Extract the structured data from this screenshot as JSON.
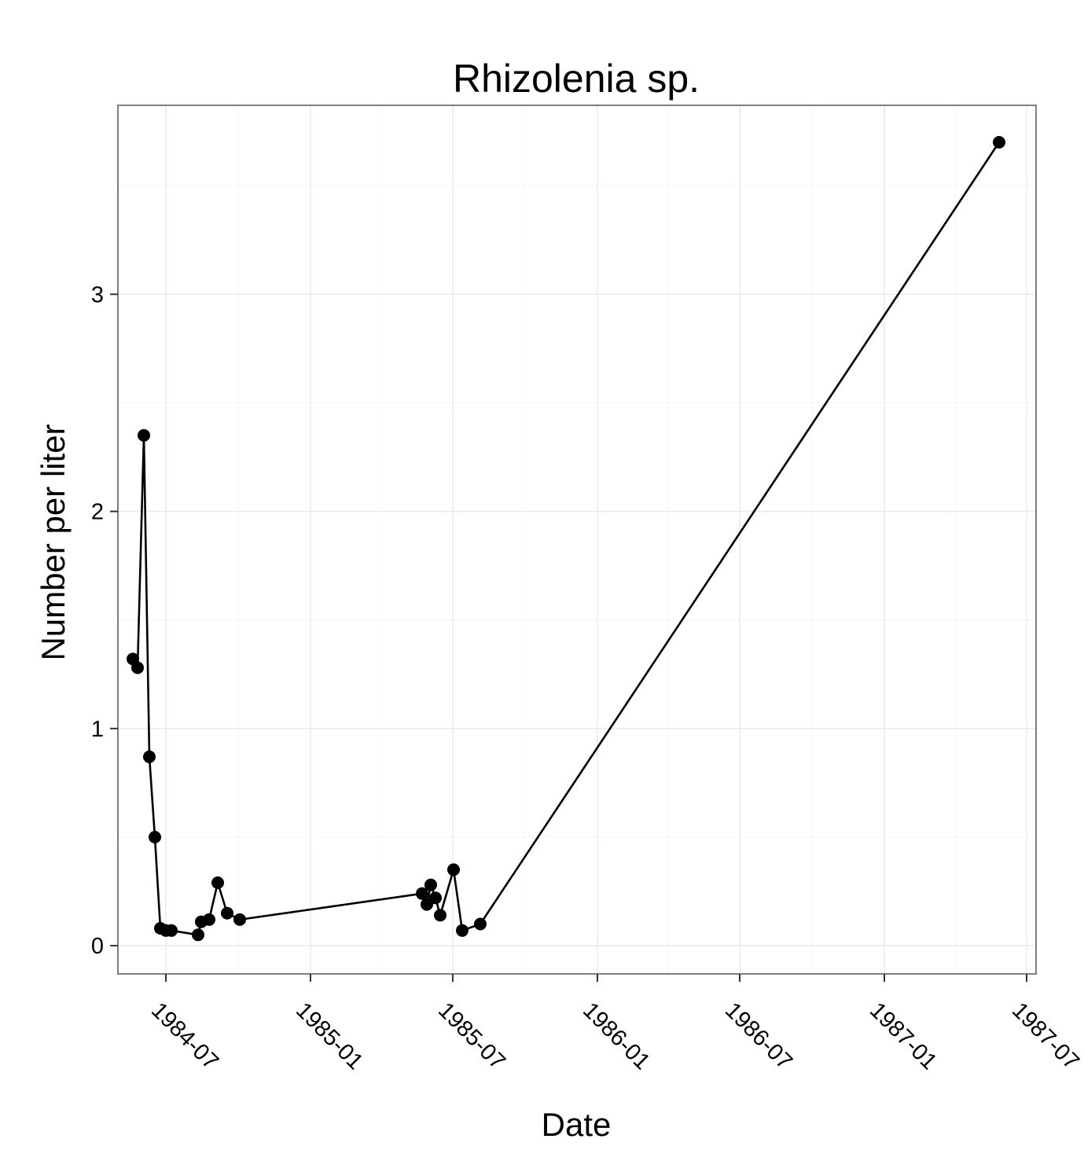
{
  "chart_data": {
    "type": "line",
    "title": "Rhizolenia sp.",
    "xlabel": "Date",
    "ylabel": "Number per liter",
    "x_tick_labels": [
      "1984-07",
      "1985-01",
      "1985-07",
      "1986-01",
      "1986-07",
      "1987-01",
      "1987-07"
    ],
    "y_tick_labels": [
      "0",
      "1",
      "2",
      "3"
    ],
    "y_ticks": [
      0,
      1,
      2,
      3
    ],
    "xlim": [
      "1984-05-01",
      "1987-07-13"
    ],
    "ylim": [
      -0.13,
      3.87
    ],
    "grid": true,
    "series": [
      {
        "x": [
          "1984-05-20",
          "1984-05-26",
          "1984-06-03",
          "1984-06-10",
          "1984-06-17",
          "1984-06-24",
          "1984-07-01",
          "1984-07-08",
          "1984-08-11",
          "1984-08-15",
          "1984-08-25",
          "1984-09-05",
          "1984-09-17",
          "1984-10-03",
          "1985-05-23",
          "1985-05-29",
          "1985-06-03",
          "1985-06-09",
          "1985-06-15",
          "1985-07-02",
          "1985-07-13",
          "1985-08-05",
          "1987-05-27"
        ],
        "y": [
          1.32,
          1.28,
          2.35,
          0.87,
          0.5,
          0.08,
          0.07,
          0.07,
          0.05,
          0.11,
          0.12,
          0.29,
          0.15,
          0.12,
          0.24,
          0.19,
          0.28,
          0.22,
          0.14,
          0.35,
          0.07,
          0.1,
          3.7
        ]
      }
    ]
  }
}
